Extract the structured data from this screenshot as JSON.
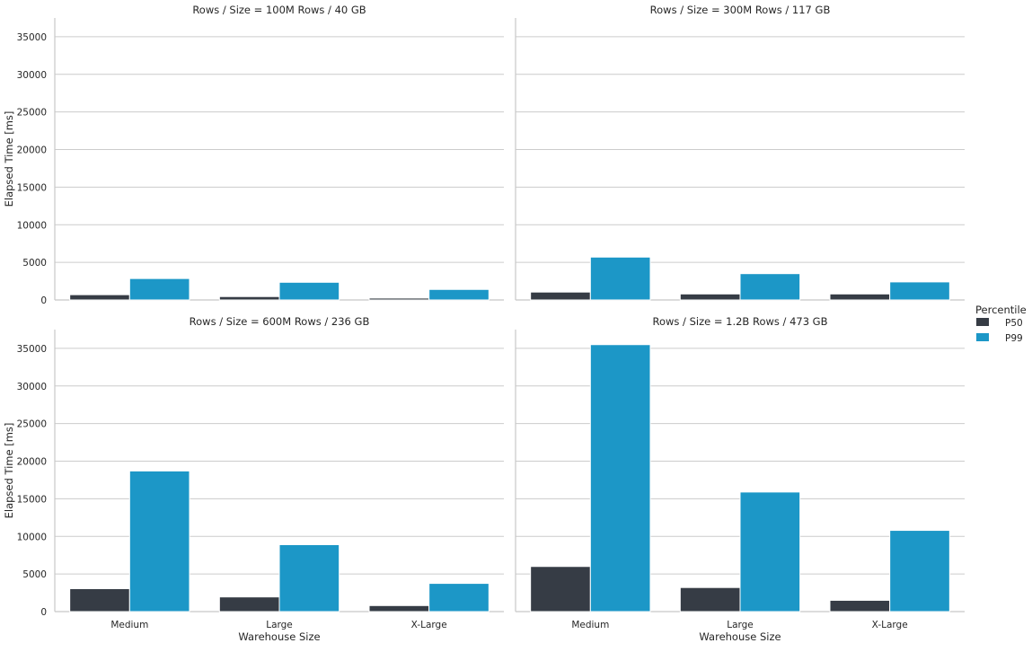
{
  "chart_data": {
    "type": "bar",
    "facet_variable": "Rows / Size",
    "xlabel": "Warehouse Size",
    "ylabel": "Elapsed Time [ms]",
    "ylim": [
      0,
      37500
    ],
    "yticks": [
      0,
      5000,
      10000,
      15000,
      20000,
      25000,
      30000,
      35000
    ],
    "categories": [
      "Medium",
      "Large",
      "X-Large"
    ],
    "grid": true,
    "legend": {
      "title": "Percentile",
      "placement": "right",
      "entries": [
        "P50",
        "P99"
      ]
    },
    "colors": {
      "P50": "#363c45",
      "P99": "#1c97c7"
    },
    "panels": [
      {
        "title": "Rows / Size = 100M Rows / 40 GB",
        "series": [
          {
            "name": "P50",
            "values": [
              700,
              450,
              250
            ]
          },
          {
            "name": "P99",
            "values": [
              2850,
              2350,
              1400
            ]
          }
        ]
      },
      {
        "title": "Rows / Size = 300M Rows / 117 GB",
        "series": [
          {
            "name": "P50",
            "values": [
              1050,
              800,
              800
            ]
          },
          {
            "name": "P99",
            "values": [
              5700,
              3500,
              2400
            ]
          }
        ]
      },
      {
        "title": "Rows / Size = 600M Rows / 236 GB",
        "series": [
          {
            "name": "P50",
            "values": [
              3050,
              1950,
              800
            ]
          },
          {
            "name": "P99",
            "values": [
              18700,
              8900,
              3750
            ]
          }
        ]
      },
      {
        "title": "Rows / Size = 1.2B Rows / 473 GB",
        "series": [
          {
            "name": "P50",
            "values": [
              6000,
              3200,
              1500
            ]
          },
          {
            "name": "P99",
            "values": [
              35500,
              15900,
              10800
            ]
          }
        ]
      }
    ]
  }
}
